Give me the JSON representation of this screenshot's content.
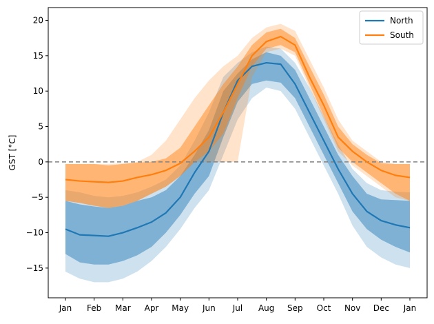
{
  "chart_data": {
    "type": "line",
    "title": "",
    "xlabel": "",
    "ylabel": "GST [°C]",
    "ylim": [
      -19.2,
      21.8
    ],
    "xlim": [
      -0.6,
      12.6
    ],
    "yticks": [
      -15,
      -10,
      -5,
      0,
      5,
      10,
      15,
      20
    ],
    "xticks": [
      {
        "v": 0,
        "label": "Jan"
      },
      {
        "v": 1,
        "label": "Feb"
      },
      {
        "v": 2,
        "label": "Mar"
      },
      {
        "v": 3,
        "label": "Apr"
      },
      {
        "v": 4,
        "label": "May"
      },
      {
        "v": 5,
        "label": "Jun"
      },
      {
        "v": 6,
        "label": "Jul"
      },
      {
        "v": 7,
        "label": "Aug"
      },
      {
        "v": 8,
        "label": "Sep"
      },
      {
        "v": 9,
        "label": "Oct"
      },
      {
        "v": 10,
        "label": "Nov"
      },
      {
        "v": 11,
        "label": "Dec"
      },
      {
        "v": 12,
        "label": "Jan"
      }
    ],
    "grid": false,
    "legend_position": "top-right",
    "reference_line": {
      "y": 0,
      "style": "dashed",
      "color": "#808080"
    },
    "series": [
      {
        "name": "North",
        "color": "#1f77b4",
        "x": [
          0,
          0.5,
          1,
          1.5,
          2,
          2.5,
          3,
          3.5,
          4,
          4.5,
          5,
          5.5,
          6,
          6.5,
          7,
          7.5,
          8,
          8.5,
          9,
          9.5,
          10,
          10.5,
          11,
          11.5,
          12
        ],
        "median": [
          -9.5,
          -10.3,
          -10.4,
          -10.5,
          -10,
          -9.3,
          -8.5,
          -7.2,
          -5,
          -1.5,
          1.5,
          7,
          11.5,
          13.5,
          14,
          13.8,
          11,
          7,
          3,
          -1,
          -4.5,
          -7,
          -8.3,
          -8.9,
          -9.3
        ],
        "inner_low": [
          -13,
          -14.2,
          -14.5,
          -14.5,
          -14,
          -13.2,
          -12,
          -10,
          -7.5,
          -4.5,
          -2,
          3.5,
          8.5,
          11,
          11.5,
          11.2,
          9,
          5,
          1,
          -3,
          -7,
          -9.5,
          -11,
          -12,
          -12.8
        ],
        "inner_high": [
          -5.5,
          -6,
          -6.3,
          -6.5,
          -6.2,
          -5.5,
          -5,
          -4,
          -2,
          1,
          4.5,
          10,
          12.5,
          14.5,
          15.5,
          15,
          13,
          9,
          5,
          1,
          -2,
          -4.5,
          -5.3,
          -5.4,
          -5.5
        ],
        "outer_low": [
          -15.5,
          -16.5,
          -17,
          -17,
          -16.5,
          -15.5,
          -14,
          -12,
          -9.5,
          -6.5,
          -4,
          1,
          6,
          9,
          10.5,
          10,
          7.5,
          3.5,
          -0.5,
          -4.5,
          -9,
          -12,
          -13.5,
          -14.5,
          -15
        ],
        "outer_high": [
          -4,
          -4.3,
          -4.8,
          -5,
          -4.8,
          -4.3,
          -3.5,
          -2.5,
          -0.5,
          3,
          7,
          12,
          14,
          15.5,
          16.3,
          16,
          14,
          10.5,
          6.5,
          2.5,
          -1,
          -3,
          -4,
          -4.2,
          -4.3
        ]
      },
      {
        "name": "South",
        "color": "#ff7f0e",
        "x": [
          0,
          0.5,
          1,
          1.5,
          2,
          2.5,
          3,
          3.5,
          4,
          4.5,
          5,
          5.5,
          6,
          6.5,
          7,
          7.5,
          8,
          8.5,
          9,
          9.5,
          10,
          10.5,
          11,
          11.5,
          12
        ],
        "median": [
          -2.5,
          -2.7,
          -2.8,
          -2.9,
          -2.7,
          -2.2,
          -1.8,
          -1.2,
          -0.2,
          1.5,
          3.5,
          7,
          11,
          15,
          17,
          17.7,
          16.5,
          12,
          8,
          3.5,
          1.5,
          0,
          -1.2,
          -1.9,
          -2.2
        ],
        "inner_low": [
          -5.5,
          -5.8,
          -6.2,
          -6.5,
          -6.2,
          -5.5,
          -4.5,
          -3.5,
          -2,
          0,
          1.5,
          4,
          9,
          13.5,
          16,
          16.5,
          15.5,
          11,
          6.5,
          2,
          0,
          -1.5,
          -3,
          -4.5,
          -5.5
        ],
        "inner_high": [
          -0.3,
          -0.3,
          -0.3,
          -0.5,
          -0.3,
          -0.1,
          0,
          0.5,
          2,
          5,
          8,
          11,
          13.5,
          16.5,
          18.3,
          18.8,
          17.5,
          13.5,
          9.5,
          5,
          2.5,
          1,
          -0.2,
          -0.3,
          -0.3
        ],
        "outer_low": [
          -5.5,
          -5.8,
          -6.2,
          -6.5,
          -6.2,
          -5.5,
          -4.5,
          -3.5,
          -2,
          0,
          0,
          0,
          0,
          12,
          15.5,
          16,
          15,
          10.5,
          6,
          1.5,
          -0.5,
          -2,
          -3.5,
          -5,
          -5.5
        ],
        "outer_high": [
          -0.3,
          -0.3,
          -0.3,
          -0.3,
          -0.2,
          0,
          1,
          3,
          6,
          9,
          11.5,
          13.5,
          15,
          17.5,
          19,
          19.5,
          18.5,
          14.5,
          10.5,
          6,
          3,
          1.5,
          0,
          -0.3,
          -0.3
        ]
      }
    ]
  }
}
